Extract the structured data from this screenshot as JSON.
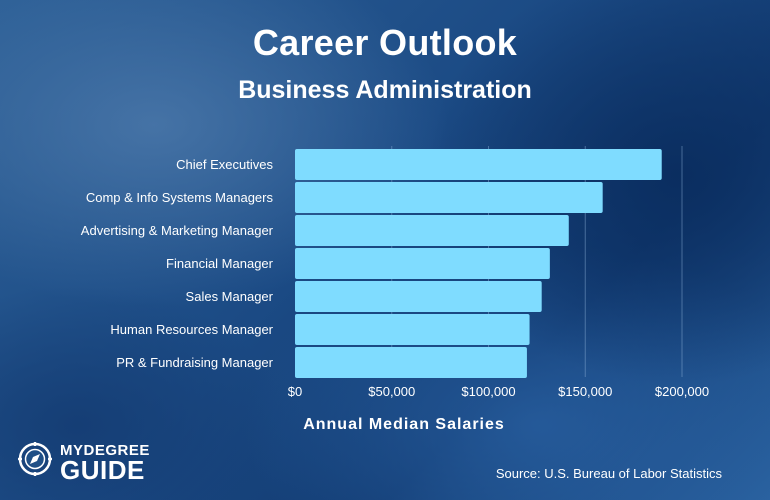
{
  "header": {
    "title": "Career Outlook",
    "subtitle": "Business Administration"
  },
  "chart_data": {
    "type": "bar",
    "orientation": "horizontal",
    "categories": [
      "Chief Executives",
      "Comp & Info Systems Managers",
      "Advertising & Marketing Manager",
      "Financial Manager",
      "Sales Manager",
      "Human Resources Manager",
      "PR & Fundraising Manager"
    ],
    "values": [
      189520,
      159010,
      141490,
      131710,
      127490,
      121220,
      119860
    ],
    "xlabel": "Annual Median Salaries",
    "ylabel": "",
    "xlim": [
      0,
      200000
    ],
    "x_ticks": [
      0,
      50000,
      100000,
      150000,
      200000
    ],
    "x_tick_labels": [
      "$0",
      "$50,000",
      "$100,000",
      "$150,000",
      "$200,000"
    ],
    "grid": true,
    "bar_color": "#7fdcff"
  },
  "footer": {
    "brand_top": "MYDEGREE",
    "brand_bottom": "GUIDE",
    "source": "Source: U.S. Bureau of Labor Statistics"
  },
  "colors": {
    "bar": "#7fdcff",
    "text": "#ffffff",
    "grid": "#8fb3da"
  }
}
